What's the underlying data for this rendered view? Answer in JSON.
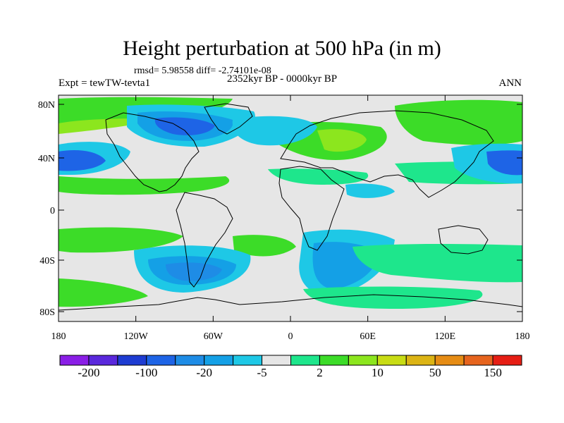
{
  "figure": {
    "title": "Height perturbation at 500 hPa (in m)",
    "stats": "rmsd= 5.98558 diff= -2.74101e-08",
    "experiment": "Expt = tewTW-tevta1",
    "period": "2352kyr BP - 0000kyr BP",
    "season": "ANN"
  },
  "axes": {
    "lat_ticks": [
      "80N",
      "40N",
      "0",
      "40S",
      "80S"
    ],
    "lon_ticks": [
      "180",
      "120W",
      "60W",
      "0",
      "60E",
      "120E",
      "180"
    ]
  },
  "colorbar": {
    "colors": [
      "#8a1ee6",
      "#5a28dc",
      "#1e3cd2",
      "#1e64e6",
      "#1e8ce6",
      "#14a0e6",
      "#1ec8e6",
      "#e6e6e6",
      "#1ee68c",
      "#3cdc28",
      "#8ce61e",
      "#c8dc14",
      "#dcb414",
      "#e68c14",
      "#e6641e",
      "#e61e14"
    ],
    "labels": [
      "-200",
      "-100",
      "-20",
      "-5",
      "2",
      "10",
      "50",
      "150"
    ]
  },
  "field_colors": {
    "neutral": "#e6e6e6",
    "light_blue": "#1ec8e6",
    "mid_blue": "#14a0e6",
    "blue": "#1e8ce6",
    "deep_blue": "#1e64e6",
    "teal": "#1ee68c",
    "green": "#3cdc28",
    "lime": "#8ce61e",
    "yellow_green": "#c8dc14"
  }
}
